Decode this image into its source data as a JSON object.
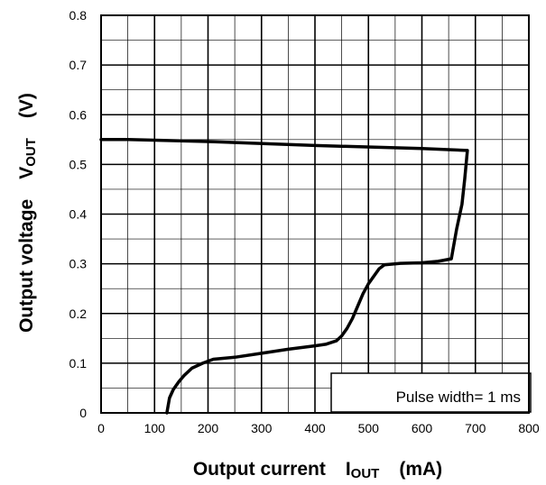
{
  "chart_data": {
    "type": "line",
    "xlabel": "Output current",
    "xlabel_symbol": "I",
    "xlabel_subscript": "OUT",
    "xlabel_unit": "(mA)",
    "ylabel": "Output voltage",
    "ylabel_symbol": "V",
    "ylabel_subscript": "OUT",
    "ylabel_unit": "(V)",
    "xlim": [
      0,
      800
    ],
    "ylim": [
      0,
      0.8
    ],
    "x_ticks": [
      0,
      100,
      200,
      300,
      400,
      500,
      600,
      700,
      800
    ],
    "y_ticks": [
      0,
      0.1,
      0.2,
      0.3,
      0.4,
      0.5,
      0.6,
      0.7,
      0.8
    ],
    "x_tick_labels": [
      "0",
      "100",
      "200",
      "300",
      "400",
      "500",
      "600",
      "700",
      "800"
    ],
    "y_tick_labels": [
      "0",
      "0.1",
      "0.2",
      "0.3",
      "0.4",
      "0.5",
      "0.6",
      "0.7",
      "0.8"
    ],
    "grid": true,
    "minor_grid": true,
    "annotation": "Pulse width= 1 ms",
    "series": [
      {
        "x": [
          0,
          50,
          200,
          400,
          600,
          685,
          680,
          675,
          665,
          655,
          630,
          600,
          560,
          530,
          520,
          500,
          490,
          480,
          470,
          460,
          450,
          440,
          420,
          400,
          350,
          300,
          250,
          210,
          190,
          170,
          155,
          145,
          135,
          128,
          123
        ],
        "y": [
          0.55,
          0.55,
          0.546,
          0.538,
          0.532,
          0.528,
          0.47,
          0.42,
          0.37,
          0.31,
          0.305,
          0.302,
          0.301,
          0.298,
          0.29,
          0.26,
          0.24,
          0.215,
          0.19,
          0.17,
          0.155,
          0.145,
          0.138,
          0.135,
          0.128,
          0.12,
          0.112,
          0.108,
          0.1,
          0.09,
          0.075,
          0.062,
          0.047,
          0.03,
          0.0
        ]
      }
    ]
  }
}
